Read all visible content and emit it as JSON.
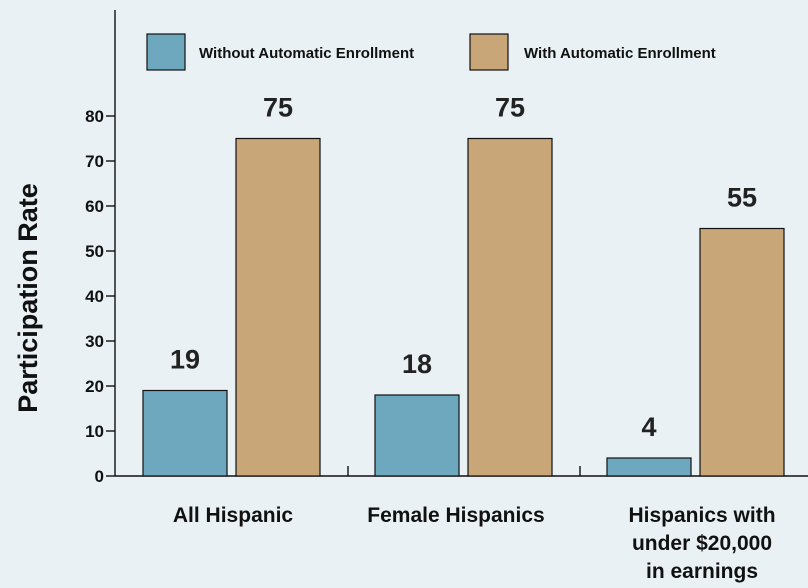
{
  "chart_data": {
    "type": "bar",
    "ylabel": "Participation Rate",
    "xlabel": "",
    "categories": [
      [
        "All Hispanic"
      ],
      [
        "Female Hispanics"
      ],
      [
        "Hispanics with",
        "under $20,000",
        "in earnings"
      ]
    ],
    "series": [
      {
        "name": "Without Automatic Enrollment",
        "values": [
          19,
          18,
          4
        ],
        "color": "#6ea8bf"
      },
      {
        "name": "With Automatic Enrollment",
        "values": [
          75,
          75,
          55
        ],
        "color": "#c8a678"
      }
    ],
    "ylim": [
      0,
      80
    ],
    "yticks": [
      "0",
      "10",
      "20",
      "30",
      "40",
      "50",
      "60",
      "70",
      "80"
    ],
    "ytick_values": [
      0,
      10,
      20,
      30,
      40,
      50,
      60,
      70,
      80
    ],
    "legend_position": "top",
    "grid": false
  }
}
